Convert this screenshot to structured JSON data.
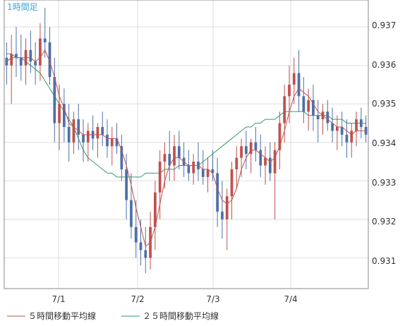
{
  "chart_data": {
    "type": "candlestick",
    "timeframe_label": "1時間足",
    "y_ticks": [
      "0.937",
      "0.936",
      "0.935",
      "0.934",
      "0.933",
      "0.932",
      "0.931"
    ],
    "x_ticks": [
      "7/1",
      "7/2",
      "7/3",
      "7/4"
    ],
    "ylim": [
      0.9302,
      0.9377
    ],
    "grid": true,
    "colors": {
      "up": "#c0504d",
      "down": "#4f6fa8",
      "ma5": "#c0504d",
      "ma25": "#2e9e6b",
      "axis": "#888888",
      "grid": "#dddddd",
      "label": "#3aa3d6"
    },
    "legend": [
      {
        "label": "５時間移動平均線",
        "color": "#c0504d"
      },
      {
        "label": "２５時間移動平均線",
        "color": "#2e9e6b"
      }
    ],
    "candles": [
      [
        0.9362,
        0.9366,
        0.9355,
        0.936
      ],
      [
        0.936,
        0.9368,
        0.935,
        0.9363
      ],
      [
        0.9363,
        0.937,
        0.9357,
        0.9362
      ],
      [
        0.9362,
        0.9368,
        0.9356,
        0.936
      ],
      [
        0.936,
        0.9367,
        0.9355,
        0.9364
      ],
      [
        0.9364,
        0.9369,
        0.9358,
        0.9361
      ],
      [
        0.9361,
        0.9366,
        0.9355,
        0.936
      ],
      [
        0.936,
        0.9371,
        0.9356,
        0.9367
      ],
      [
        0.9367,
        0.9375,
        0.9362,
        0.9366
      ],
      [
        0.9366,
        0.937,
        0.9355,
        0.9357
      ],
      [
        0.9357,
        0.9362,
        0.934,
        0.9345
      ],
      [
        0.9345,
        0.9355,
        0.9338,
        0.935
      ],
      [
        0.935,
        0.9354,
        0.934,
        0.9344
      ],
      [
        0.9344,
        0.935,
        0.9335,
        0.934
      ],
      [
        0.934,
        0.9348,
        0.9337,
        0.9346
      ],
      [
        0.9346,
        0.935,
        0.9338,
        0.9342
      ],
      [
        0.9342,
        0.9346,
        0.9335,
        0.934
      ],
      [
        0.934,
        0.9345,
        0.9335,
        0.9343
      ],
      [
        0.9343,
        0.9347,
        0.9338,
        0.9341
      ],
      [
        0.9341,
        0.9345,
        0.9336,
        0.9344
      ],
      [
        0.9344,
        0.9348,
        0.9339,
        0.9342
      ],
      [
        0.9342,
        0.9346,
        0.9336,
        0.9339
      ],
      [
        0.9339,
        0.9344,
        0.9334,
        0.9341
      ],
      [
        0.9341,
        0.9345,
        0.9337,
        0.9339
      ],
      [
        0.9339,
        0.9342,
        0.933,
        0.9333
      ],
      [
        0.9333,
        0.9337,
        0.932,
        0.9325
      ],
      [
        0.9325,
        0.9332,
        0.9315,
        0.9318
      ],
      [
        0.9318,
        0.9325,
        0.931,
        0.9314
      ],
      [
        0.9314,
        0.932,
        0.9308,
        0.9312
      ],
      [
        0.9312,
        0.9318,
        0.9306,
        0.931
      ],
      [
        0.931,
        0.9322,
        0.9307,
        0.9318
      ],
      [
        0.9318,
        0.933,
        0.9312,
        0.9327
      ],
      [
        0.9327,
        0.9338,
        0.932,
        0.9335
      ],
      [
        0.9335,
        0.934,
        0.9328,
        0.9337
      ],
      [
        0.9337,
        0.9343,
        0.933,
        0.9334
      ],
      [
        0.9334,
        0.9342,
        0.933,
        0.9339
      ],
      [
        0.9339,
        0.9343,
        0.9333,
        0.9336
      ],
      [
        0.9336,
        0.934,
        0.9331,
        0.9334
      ],
      [
        0.9334,
        0.9338,
        0.933,
        0.9332
      ],
      [
        0.9332,
        0.9337,
        0.9329,
        0.9335
      ],
      [
        0.9335,
        0.934,
        0.933,
        0.9333
      ],
      [
        0.9333,
        0.9338,
        0.9329,
        0.9331
      ],
      [
        0.9331,
        0.9336,
        0.9327,
        0.9333
      ],
      [
        0.9333,
        0.9338,
        0.933,
        0.9332
      ],
      [
        0.9332,
        0.9336,
        0.9318,
        0.9322
      ],
      [
        0.9322,
        0.933,
        0.9315,
        0.932
      ],
      [
        0.932,
        0.9328,
        0.9312,
        0.9326
      ],
      [
        0.9326,
        0.9335,
        0.932,
        0.9333
      ],
      [
        0.9333,
        0.9339,
        0.9328,
        0.9336
      ],
      [
        0.9336,
        0.9341,
        0.9331,
        0.9339
      ],
      [
        0.9339,
        0.9343,
        0.9333,
        0.9337
      ],
      [
        0.9337,
        0.9341,
        0.9332,
        0.934
      ],
      [
        0.934,
        0.9344,
        0.9335,
        0.9338
      ],
      [
        0.9338,
        0.9342,
        0.9331,
        0.9334
      ],
      [
        0.9334,
        0.9339,
        0.9329,
        0.9336
      ],
      [
        0.9336,
        0.934,
        0.933,
        0.9332
      ],
      [
        0.9332,
        0.934,
        0.932,
        0.9338
      ],
      [
        0.9338,
        0.9348,
        0.9333,
        0.9345
      ],
      [
        0.9345,
        0.9355,
        0.934,
        0.9352
      ],
      [
        0.9352,
        0.936,
        0.9345,
        0.9355
      ],
      [
        0.9355,
        0.9362,
        0.935,
        0.9358
      ],
      [
        0.9358,
        0.9364,
        0.9348,
        0.9352
      ],
      [
        0.9352,
        0.9357,
        0.9345,
        0.9348
      ],
      [
        0.9348,
        0.9354,
        0.9343,
        0.9351
      ],
      [
        0.9351,
        0.9355,
        0.9343,
        0.9347
      ],
      [
        0.9347,
        0.9351,
        0.934,
        0.9346
      ],
      [
        0.9346,
        0.935,
        0.9342,
        0.9348
      ],
      [
        0.9348,
        0.9351,
        0.9343,
        0.9345
      ],
      [
        0.9345,
        0.9349,
        0.934,
        0.9343
      ],
      [
        0.9343,
        0.9347,
        0.9338,
        0.9344
      ],
      [
        0.9344,
        0.9348,
        0.9339,
        0.9342
      ],
      [
        0.9342,
        0.9346,
        0.9336,
        0.934
      ],
      [
        0.934,
        0.9345,
        0.9336,
        0.9343
      ],
      [
        0.9343,
        0.9348,
        0.9339,
        0.9346
      ],
      [
        0.9346,
        0.9349,
        0.9341,
        0.9344
      ],
      [
        0.9344,
        0.9347,
        0.934,
        0.9342
      ]
    ],
    "ma5": [
      0.9361,
      0.9362,
      0.9362,
      0.9362,
      0.9362,
      0.9362,
      0.9361,
      0.9362,
      0.9364,
      0.9361,
      0.9357,
      0.9352,
      0.9349,
      0.9345,
      0.9344,
      0.9343,
      0.9342,
      0.9342,
      0.9342,
      0.9342,
      0.9342,
      0.9341,
      0.9341,
      0.9341,
      0.9338,
      0.9334,
      0.9329,
      0.9323,
      0.9318,
      0.9313,
      0.9314,
      0.9318,
      0.9324,
      0.933,
      0.9334,
      0.9336,
      0.9336,
      0.9335,
      0.9334,
      0.9334,
      0.9334,
      0.9333,
      0.9333,
      0.9332,
      0.9328,
      0.9325,
      0.9324,
      0.9325,
      0.9328,
      0.9333,
      0.9336,
      0.9338,
      0.9338,
      0.9337,
      0.9336,
      0.9335,
      0.9336,
      0.9339,
      0.9343,
      0.9348,
      0.9352,
      0.9354,
      0.9353,
      0.9352,
      0.935,
      0.9348,
      0.9347,
      0.9346,
      0.9345,
      0.9344,
      0.9344,
      0.9343,
      0.9342,
      0.9343,
      0.9343,
      0.9343
    ],
    "ma25": [
      0.9363,
      0.9363,
      0.9362,
      0.9362,
      0.9361,
      0.936,
      0.9359,
      0.9358,
      0.9356,
      0.9354,
      0.9352,
      0.935,
      0.9348,
      0.9346,
      0.9344,
      0.9341,
      0.9338,
      0.9336,
      0.9335,
      0.9334,
      0.9333,
      0.9332,
      0.9332,
      0.9331,
      0.9331,
      0.9331,
      0.9331,
      0.9331,
      0.9331,
      0.9332,
      0.9332,
      0.9332,
      0.9332,
      0.9333,
      0.9333,
      0.9333,
      0.9334,
      0.9334,
      0.9334,
      0.9334,
      0.9334,
      0.9335,
      0.9336,
      0.9337,
      0.9338,
      0.9339,
      0.934,
      0.9341,
      0.9342,
      0.9343,
      0.9344,
      0.9344,
      0.9345,
      0.9345,
      0.9346,
      0.9346,
      0.9346,
      0.9347,
      0.9348,
      0.9348,
      0.9348,
      0.9348,
      0.9348,
      0.9347,
      0.9347,
      0.9347,
      0.9347,
      0.9347,
      0.9346,
      0.9346,
      0.9346,
      0.9345,
      0.9345,
      0.9345,
      0.9345,
      0.9345
    ]
  }
}
